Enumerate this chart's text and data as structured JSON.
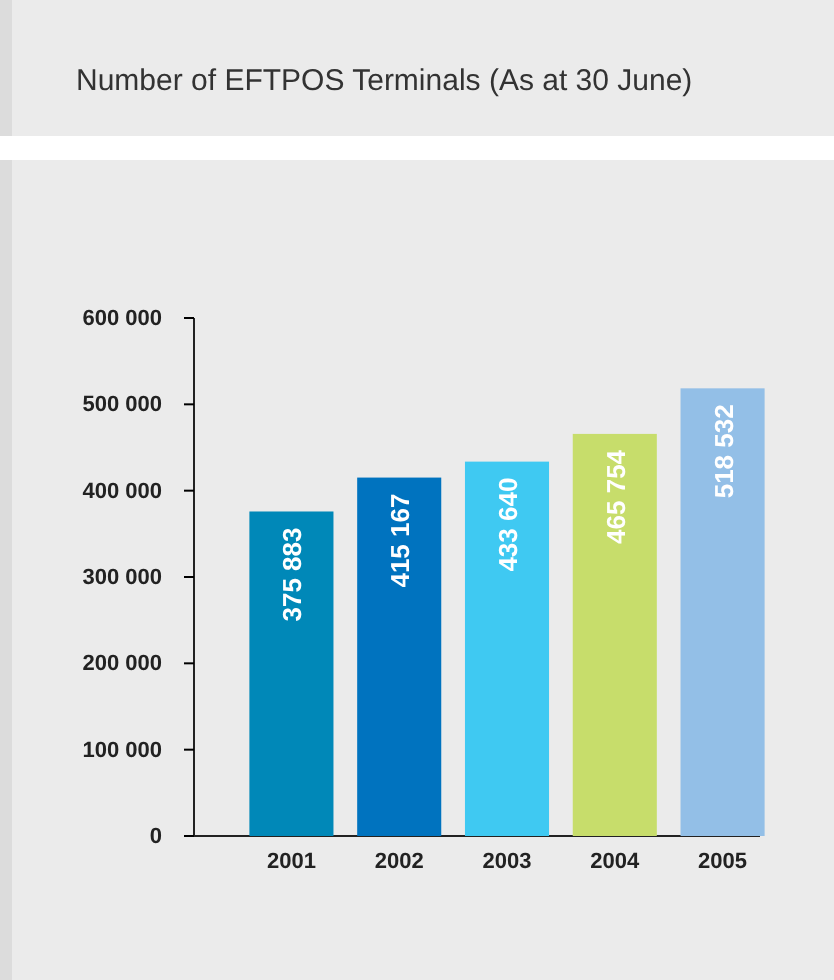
{
  "chart_data": {
    "type": "bar",
    "title": "Number of EFTPOS Terminals (As at 30 June)",
    "categories": [
      "2001",
      "2002",
      "2003",
      "2004",
      "2005"
    ],
    "values": [
      375883,
      415167,
      433640,
      465754,
      518532
    ],
    "colors": [
      "#0088b8",
      "#0073bf",
      "#3fc9f2",
      "#c7dd6b",
      "#93bfe7"
    ],
    "value_labels": [
      "375 883",
      "415 167",
      "433 640",
      "465 754",
      "518 532"
    ],
    "ylim": [
      0,
      600000
    ],
    "yticks": [
      0,
      {
        "value": 100000,
        "label": "100 000"
      },
      {
        "value": 200000,
        "label": "200 000"
      },
      {
        "value": 300000,
        "label": "300 000"
      },
      {
        "value": 400000,
        "label": "400 000"
      },
      {
        "value": 500000,
        "label": "500 000"
      },
      {
        "value": 600000,
        "label": "600 000"
      }
    ],
    "grid": false
  }
}
